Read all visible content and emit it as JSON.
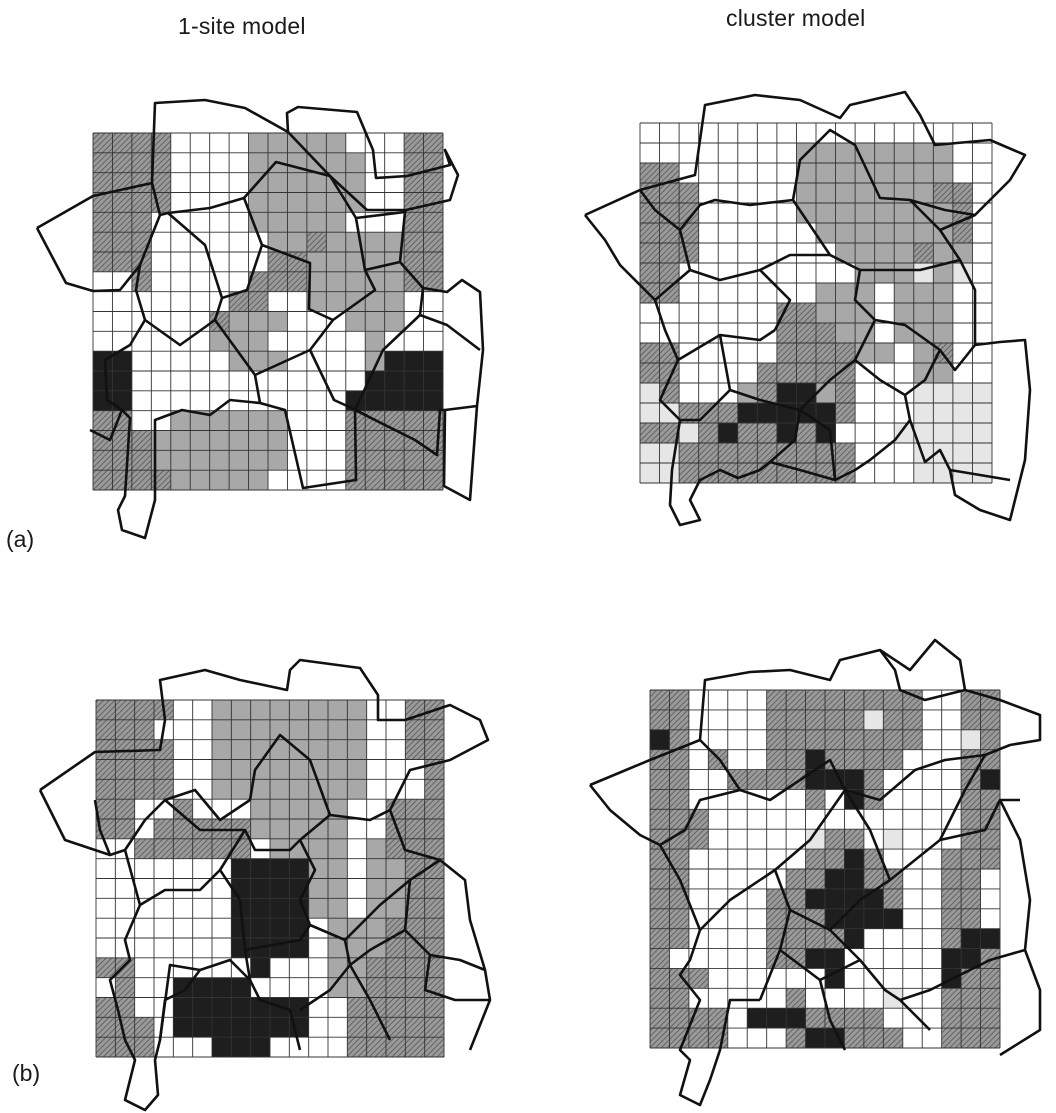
{
  "columns": [
    {
      "title": "1-site model"
    },
    {
      "title": "cluster model"
    }
  ],
  "rows": [
    {
      "label": "(a)"
    },
    {
      "label": "(b)"
    }
  ],
  "legend_colors": {
    "empty": "#ffffff",
    "light": "#e6e6e6",
    "medium": "#a8a8a8",
    "hatched": "#8c8c8c",
    "dark": "#1e1e1e",
    "grid_line": "#333333",
    "grain_boundary": "#111111"
  },
  "panels": [
    {
      "name": "a-1site",
      "grid": [
        "HHHHWWWWGGGGGWWWHH",
        "HHHHWWWWGGGGGGWWHH",
        "HHHHWWWWGGGGGGWWHH",
        "HHHHWWWWGGGGGGWWHH",
        "HHHWWWWWGGGGGWWWHH",
        "HHHWWWWWWGGHGGGGHH",
        "HHHWWWWWWHHGGGGGHH",
        "WWHWWWWWHHHGGGGGHH",
        "WWWWWWWHHWWGGGGGWW",
        "WWWWWWHGGGWWWGGGWW",
        "WWWWWWGGGWWWWWGWWW",
        "DDWWWWWGGGWWWWGDDD",
        "DDWWWWWWWWWWWWDDDD",
        "DDWWWWWWWWWWWDDDDD",
        "HHWWGGGGGGWWWHHHHH",
        "HHHGGGGGGGWWWHHHHH",
        "HHHGGGGGGGWWWHHHHH",
        "HHHHGGGGGWWWWHHHHH"
      ]
    },
    {
      "name": "a-cluster",
      "grid": [
        "WWWWWWWWWWWWWWWWWW",
        "WWWWWWWWGGGGGGGGWW",
        "HHWWWWWWGGGGGGGGWW",
        "HHHWWWWWGGGGGGGHHW",
        "HHHWWWWWGGGGGGGGHW",
        "HHHWWWWWWGGGGGGGHW",
        "HHHWWWWWWWGGGGHGGW",
        "HHWWWWWWWWWGGGLGLW",
        "HHWWWWWWWGGGWGGGWW",
        "WWWWWWWHHGGGWGGGWW",
        "WWWWWWWHHHGGWGGGWW",
        "HHWWWWWHHHHGGWGHWW",
        "HHWWWWHHHHHWWWGGWW",
        "LHWWWGHDDGHWWWLLLL",
        "LLHHHDDDDDHWWWLLLL",
        "HHLHDHHDHDWWWLLLLL",
        "LLHHHHHHHHHWWWLLLL",
        "LLHHHHHHHHHWWWLLLL"
      ]
    },
    {
      "name": "b-1site",
      "grid": [
        "HHHHWWGGGGGGGGWWHH",
        "HHHWWWGGGGGGGGWWHH",
        "HHHHWWGGGGGGGGWWHH",
        "HHHHWWGGGGGGGGWWWH",
        "HHHHWWGGGGGGGGWWWH",
        "HHWWHWWWGGGGGWWHHH",
        "HHWHHHHHGGGGGWWHHH",
        "WWHHHHHHWGGGGWGHHH",
        "WWWWWWWDDDDGGWGGHH",
        "WWWWWWWDDDDGGWGGHH",
        "WWWWWWWDDDDGGWGGHH",
        "WWWWWWWDDDDWGGGHHH",
        "WWWWWWWDDDDWGGGHHH",
        "HHWWWWWWDWWWGGHHHH",
        "WHWWDDDDWWWWGGHHHH",
        "HHWWDDDDDDDWWHHHHH",
        "HHHWDDDDDDDWWHHHHH",
        "HHHWWWDDDWWWWHHHHH"
      ]
    },
    {
      "name": "b-cluster",
      "grid": [
        "HHWWWWHHHHHHHHWWHH",
        "HHWWWWHHHHHLHHWWHH",
        "DHWWWWHHHHHHHHWWLH",
        "HHWHWWHHDHHHHWWWHH",
        "HHWWHHHHDDDHWWWWHD",
        "HHWWWWWWHWDHWWWWHH",
        "HHHWWWWWWWWWWWWWHH",
        "HHHWWWWWLHHWLWWWHH",
        "HHWWWWWWHHDHWWWHHH",
        "HHWWWWWHHDDHHWWHHW",
        "HHWWWWHHDDDDHWWHHW",
        "HHWWWWHHHDDDDWWHHW",
        "HHWWWWHHHHDWWWWHDD",
        "HWWWWWHHDDWWWWWDDH",
        "HHHWWWWWWDWWWWWDHH",
        "HHWWWWWHWWWWLWWHHH",
        "HHHHWDDDHHHHWWWHHH",
        "HHHHWWWHDDHHHWWHHH"
      ]
    }
  ]
}
